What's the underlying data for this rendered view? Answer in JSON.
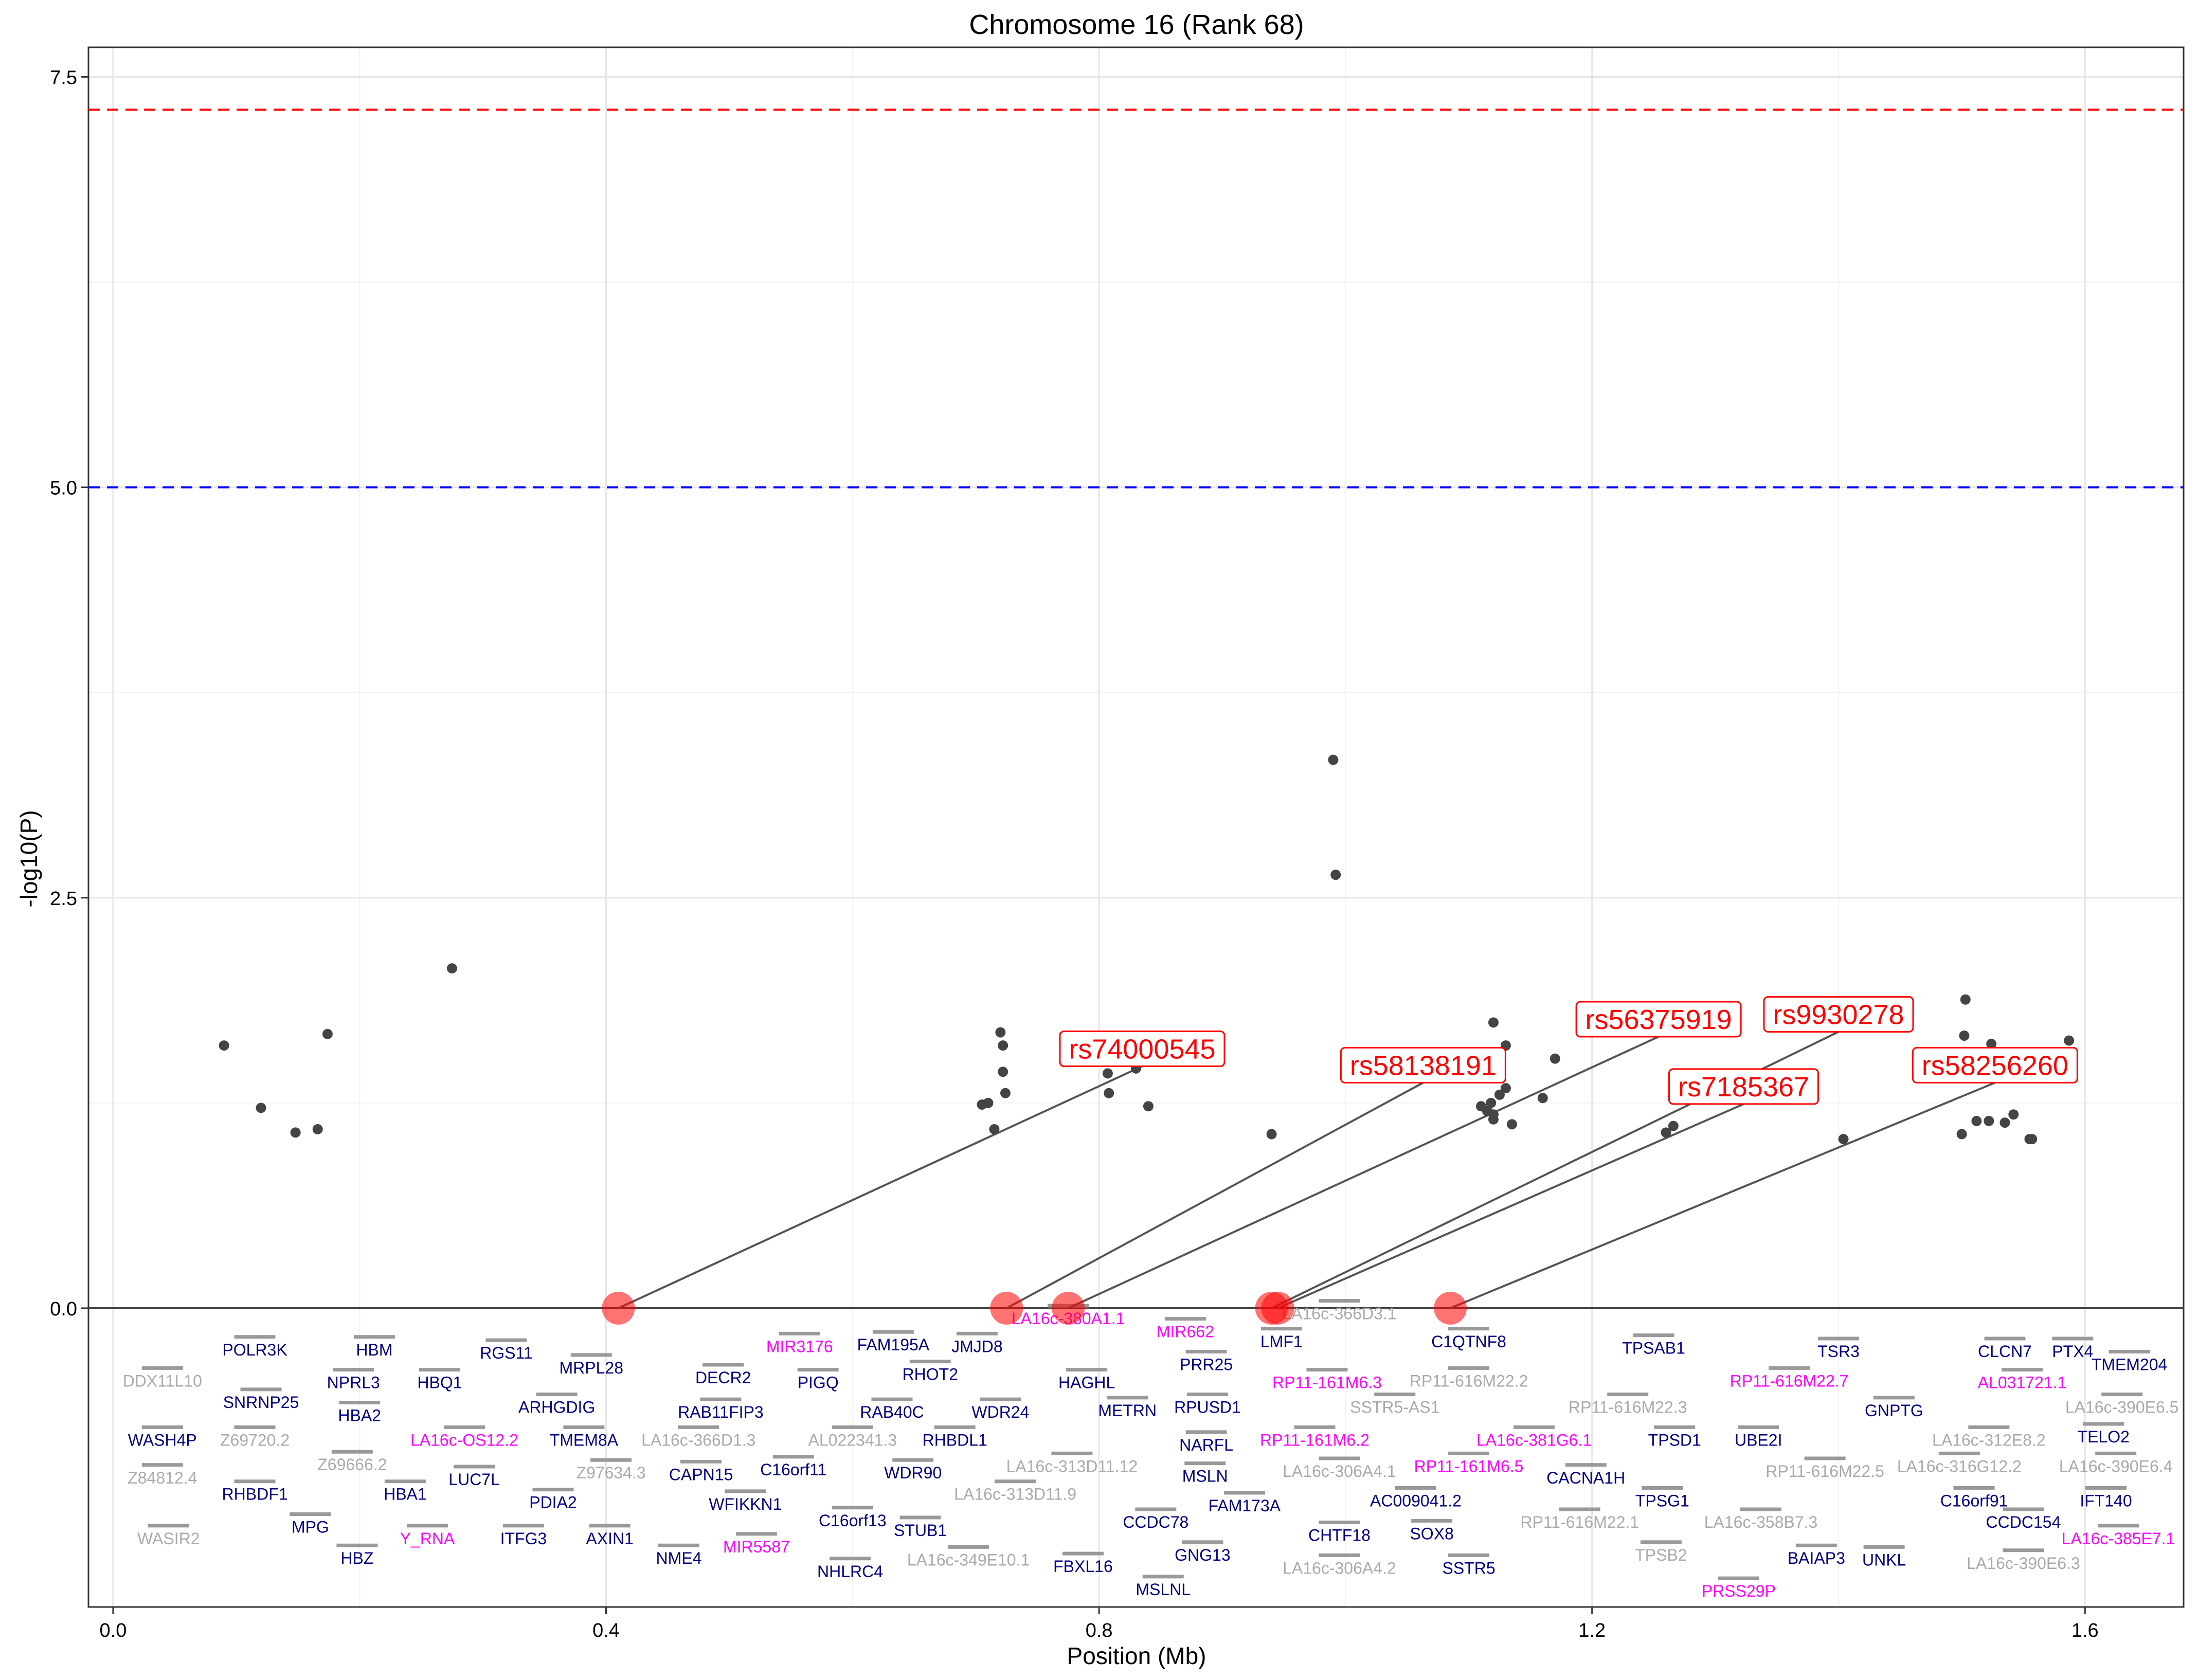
{
  "chart_data": {
    "type": "scatter",
    "title": "Chromosome 16 (Rank 68)",
    "xlabel": "Position (Mb)",
    "ylabel": "-log10(P)",
    "xlim": [
      -0.02,
      1.68
    ],
    "ylim": [
      -1.82,
      7.68
    ],
    "x_ticks": [
      {
        "value": 0.0,
        "label": "0.0"
      },
      {
        "value": 0.4,
        "label": "0.4"
      },
      {
        "value": 0.8,
        "label": "0.8"
      },
      {
        "value": 1.2,
        "label": "1.2"
      },
      {
        "value": 1.6,
        "label": "1.6"
      }
    ],
    "y_ticks": [
      {
        "value": 0.0,
        "label": "0.0"
      },
      {
        "value": 2.5,
        "label": "2.5"
      },
      {
        "value": 5.0,
        "label": "5.0"
      },
      {
        "value": 7.5,
        "label": "7.5"
      }
    ],
    "grid": true,
    "thresholds": [
      {
        "y": 7.3,
        "color": "#ff0000",
        "style": "dashed"
      },
      {
        "y": 5.0,
        "color": "#0000ff",
        "style": "dashed"
      }
    ],
    "baseline": 0,
    "colors": {
      "points": "#444444",
      "highlight": "#ff0000",
      "protein_coding": "#000080",
      "rna_gene": "#ff00ff",
      "other_gene": "#aaaaaa",
      "gene_bar": "#999999"
    },
    "points": [
      {
        "x": 0.09,
        "y": 1.6
      },
      {
        "x": 0.12,
        "y": 1.22
      },
      {
        "x": 0.148,
        "y": 1.07
      },
      {
        "x": 0.166,
        "y": 1.09
      },
      {
        "x": 0.174,
        "y": 1.67
      },
      {
        "x": 0.275,
        "y": 2.07
      },
      {
        "x": 0.705,
        "y": 1.24
      },
      {
        "x": 0.71,
        "y": 1.25
      },
      {
        "x": 0.715,
        "y": 1.09
      },
      {
        "x": 0.72,
        "y": 1.68
      },
      {
        "x": 0.722,
        "y": 1.6
      },
      {
        "x": 0.722,
        "y": 1.44
      },
      {
        "x": 0.724,
        "y": 1.31
      },
      {
        "x": 0.807,
        "y": 1.43
      },
      {
        "x": 0.808,
        "y": 1.31
      },
      {
        "x": 0.83,
        "y": 1.46
      },
      {
        "x": 0.84,
        "y": 1.23
      },
      {
        "x": 0.94,
        "y": 1.06
      },
      {
        "x": 0.99,
        "y": 3.34
      },
      {
        "x": 0.992,
        "y": 2.64
      },
      {
        "x": 1.11,
        "y": 1.23
      },
      {
        "x": 1.115,
        "y": 1.2
      },
      {
        "x": 1.118,
        "y": 1.25
      },
      {
        "x": 1.12,
        "y": 1.15
      },
      {
        "x": 1.12,
        "y": 1.18
      },
      {
        "x": 1.12,
        "y": 1.74
      },
      {
        "x": 1.125,
        "y": 1.3
      },
      {
        "x": 1.13,
        "y": 1.34
      },
      {
        "x": 1.13,
        "y": 1.6
      },
      {
        "x": 1.135,
        "y": 1.12
      },
      {
        "x": 1.16,
        "y": 1.28
      },
      {
        "x": 1.17,
        "y": 1.52
      },
      {
        "x": 1.26,
        "y": 1.07
      },
      {
        "x": 1.266,
        "y": 1.11
      },
      {
        "x": 1.404,
        "y": 1.03
      },
      {
        "x": 1.5,
        "y": 1.06
      },
      {
        "x": 1.502,
        "y": 1.66
      },
      {
        "x": 1.503,
        "y": 1.88
      },
      {
        "x": 1.512,
        "y": 1.14
      },
      {
        "x": 1.522,
        "y": 1.14
      },
      {
        "x": 1.524,
        "y": 1.61
      },
      {
        "x": 1.535,
        "y": 1.13
      },
      {
        "x": 1.542,
        "y": 1.18
      },
      {
        "x": 1.555,
        "y": 1.03
      },
      {
        "x": 1.557,
        "y": 1.03
      },
      {
        "x": 1.577,
        "y": 1.4
      },
      {
        "x": 1.587,
        "y": 1.63
      }
    ],
    "highlighted_snps": [
      {
        "label": "rs74000545",
        "x": 0.41,
        "label_x": 0.835,
        "label_y": 1.58
      },
      {
        "label": "rs58138191",
        "x": 0.725,
        "label_x": 1.063,
        "label_y": 1.48
      },
      {
        "label": "rs56375919",
        "x": 0.775,
        "label_x": 1.254,
        "label_y": 1.76
      },
      {
        "label": "rs9930278",
        "x": 0.94,
        "label_x": 1.4,
        "label_y": 1.79
      },
      {
        "label": "rs7185367",
        "x": 0.945,
        "label_x": 1.323,
        "label_y": 1.35
      },
      {
        "label": "rs58256260",
        "x": 1.085,
        "label_x": 1.527,
        "label_y": 1.48
      }
    ],
    "genes": [
      {
        "name": "DDX11L10",
        "x": 0.04,
        "y": -0.44,
        "color": "#aaaaaa"
      },
      {
        "name": "POLR3K",
        "x": 0.115,
        "y": -0.25,
        "color": "#000080"
      },
      {
        "name": "HBM",
        "x": 0.212,
        "y": -0.25,
        "color": "#000080"
      },
      {
        "name": "NPRL3",
        "x": 0.195,
        "y": -0.45,
        "color": "#000080"
      },
      {
        "name": "HBQ1",
        "x": 0.265,
        "y": -0.45,
        "color": "#000080"
      },
      {
        "name": "RGS11",
        "x": 0.319,
        "y": -0.27,
        "color": "#000080"
      },
      {
        "name": "MRPL28",
        "x": 0.388,
        "y": -0.36,
        "color": "#000080"
      },
      {
        "name": "DECR2",
        "x": 0.495,
        "y": -0.42,
        "color": "#000080"
      },
      {
        "name": "SNRNP25",
        "x": 0.12,
        "y": -0.57,
        "color": "#000080"
      },
      {
        "name": "HBA2",
        "x": 0.2,
        "y": -0.65,
        "color": "#000080"
      },
      {
        "name": "ARHGDIG",
        "x": 0.36,
        "y": -0.6,
        "color": "#000080"
      },
      {
        "name": "WASH4P",
        "x": 0.04,
        "y": -0.8,
        "color": "#000080"
      },
      {
        "name": "Z69720.2",
        "x": 0.115,
        "y": -0.8,
        "color": "#aaaaaa"
      },
      {
        "name": "LA16c-OS12.2",
        "x": 0.285,
        "y": -0.8,
        "color": "#ff00ff"
      },
      {
        "name": "TMEM8A",
        "x": 0.382,
        "y": -0.8,
        "color": "#000080"
      },
      {
        "name": "LA16c-366D1.3",
        "x": 0.475,
        "y": -0.8,
        "color": "#aaaaaa"
      },
      {
        "name": "RAB11FIP3",
        "x": 0.493,
        "y": -0.63,
        "color": "#000080"
      },
      {
        "name": "AL022341.3",
        "x": 0.6,
        "y": -0.8,
        "color": "#aaaaaa"
      },
      {
        "name": "RAB40C",
        "x": 0.632,
        "y": -0.63,
        "color": "#000080"
      },
      {
        "name": "RHBDL1",
        "x": 0.683,
        "y": -0.8,
        "color": "#000080"
      },
      {
        "name": "WDR24",
        "x": 0.72,
        "y": -0.63,
        "color": "#000080"
      },
      {
        "name": "MIR3176",
        "x": 0.557,
        "y": -0.23,
        "color": "#ff00ff"
      },
      {
        "name": "PIGQ",
        "x": 0.572,
        "y": -0.45,
        "color": "#000080"
      },
      {
        "name": "FAM195A",
        "x": 0.633,
        "y": -0.22,
        "color": "#000080"
      },
      {
        "name": "RHOT2",
        "x": 0.663,
        "y": -0.4,
        "color": "#000080"
      },
      {
        "name": "JMJD8",
        "x": 0.701,
        "y": -0.23,
        "color": "#000080"
      },
      {
        "name": "LA16c-380A1.1",
        "x": 0.775,
        "y": -0.06,
        "color": "#ff00ff"
      },
      {
        "name": "MIR662",
        "x": 0.87,
        "y": -0.14,
        "color": "#ff00ff"
      },
      {
        "name": "HAGHL",
        "x": 0.79,
        "y": -0.45,
        "color": "#000080"
      },
      {
        "name": "PRR25",
        "x": 0.887,
        "y": -0.34,
        "color": "#000080"
      },
      {
        "name": "METRN",
        "x": 0.823,
        "y": -0.62,
        "color": "#000080"
      },
      {
        "name": "RPUSD1",
        "x": 0.888,
        "y": -0.6,
        "color": "#000080"
      },
      {
        "name": "NARFL",
        "x": 0.887,
        "y": -0.83,
        "color": "#000080"
      },
      {
        "name": "LMF1",
        "x": 0.948,
        "y": -0.2,
        "color": "#000080"
      },
      {
        "name": "LA16c-366D3.1",
        "x": 0.995,
        "y": -0.03,
        "color": "#aaaaaa"
      },
      {
        "name": "RP11-161M6.3",
        "x": 0.985,
        "y": -0.45,
        "color": "#ff00ff"
      },
      {
        "name": "RP11-161M6.2",
        "x": 0.975,
        "y": -0.8,
        "color": "#ff00ff"
      },
      {
        "name": "C1QTNF8",
        "x": 1.1,
        "y": -0.2,
        "color": "#000080"
      },
      {
        "name": "RP11-616M22.2",
        "x": 1.1,
        "y": -0.44,
        "color": "#aaaaaa"
      },
      {
        "name": "SSTR5-AS1",
        "x": 1.04,
        "y": -0.6,
        "color": "#aaaaaa"
      },
      {
        "name": "TPSAB1",
        "x": 1.25,
        "y": -0.24,
        "color": "#000080"
      },
      {
        "name": "RP11-616M22.7",
        "x": 1.36,
        "y": -0.44,
        "color": "#ff00ff"
      },
      {
        "name": "TSR3",
        "x": 1.4,
        "y": -0.26,
        "color": "#000080"
      },
      {
        "name": "CLCN7",
        "x": 1.535,
        "y": -0.26,
        "color": "#000080"
      },
      {
        "name": "PTX4",
        "x": 1.59,
        "y": -0.26,
        "color": "#000080"
      },
      {
        "name": "TMEM204",
        "x": 1.636,
        "y": -0.34,
        "color": "#000080"
      },
      {
        "name": "AL031721.1",
        "x": 1.549,
        "y": -0.45,
        "color": "#ff00ff"
      },
      {
        "name": "RP11-616M22.3",
        "x": 1.229,
        "y": -0.6,
        "color": "#aaaaaa"
      },
      {
        "name": "LA16c-381G6.1",
        "x": 1.153,
        "y": -0.8,
        "color": "#ff00ff"
      },
      {
        "name": "TPSD1",
        "x": 1.267,
        "y": -0.8,
        "color": "#000080"
      },
      {
        "name": "UBE2I",
        "x": 1.335,
        "y": -0.8,
        "color": "#000080"
      },
      {
        "name": "GNPTG",
        "x": 1.445,
        "y": -0.62,
        "color": "#000080"
      },
      {
        "name": "LA16c-390E6.5",
        "x": 1.63,
        "y": -0.6,
        "color": "#aaaaaa"
      },
      {
        "name": "LA16c-312E8.2",
        "x": 1.522,
        "y": -0.8,
        "color": "#aaaaaa"
      },
      {
        "name": "TELO2",
        "x": 1.615,
        "y": -0.78,
        "color": "#000080"
      },
      {
        "name": "Z84812.4",
        "x": 0.04,
        "y": -1.03,
        "color": "#aaaaaa"
      },
      {
        "name": "RHBDF1",
        "x": 0.115,
        "y": -1.13,
        "color": "#000080"
      },
      {
        "name": "Z69666.2",
        "x": 0.194,
        "y": -0.95,
        "color": "#aaaaaa"
      },
      {
        "name": "HBA1",
        "x": 0.237,
        "y": -1.13,
        "color": "#000080"
      },
      {
        "name": "LUC7L",
        "x": 0.293,
        "y": -1.04,
        "color": "#000080"
      },
      {
        "name": "PDIA2",
        "x": 0.357,
        "y": -1.18,
        "color": "#000080"
      },
      {
        "name": "Z97634.3",
        "x": 0.404,
        "y": -1.0,
        "color": "#aaaaaa"
      },
      {
        "name": "CAPN15",
        "x": 0.477,
        "y": -1.01,
        "color": "#000080"
      },
      {
        "name": "C16orf11",
        "x": 0.552,
        "y": -0.98,
        "color": "#000080"
      },
      {
        "name": "WFIKKN1",
        "x": 0.513,
        "y": -1.19,
        "color": "#000080"
      },
      {
        "name": "WDR90",
        "x": 0.649,
        "y": -1.0,
        "color": "#000080"
      },
      {
        "name": "LA16c-313D11.12",
        "x": 0.778,
        "y": -0.96,
        "color": "#aaaaaa"
      },
      {
        "name": "LA16c-313D11.9",
        "x": 0.732,
        "y": -1.13,
        "color": "#aaaaaa"
      },
      {
        "name": "MSLN",
        "x": 0.886,
        "y": -1.02,
        "color": "#000080"
      },
      {
        "name": "FAM173A",
        "x": 0.918,
        "y": -1.2,
        "color": "#000080"
      },
      {
        "name": "LA16c-306A4.1",
        "x": 0.995,
        "y": -0.99,
        "color": "#aaaaaa"
      },
      {
        "name": "AC009041.2",
        "x": 1.057,
        "y": -1.17,
        "color": "#000080"
      },
      {
        "name": "RP11-161M6.5",
        "x": 1.1,
        "y": -0.96,
        "color": "#ff00ff"
      },
      {
        "name": "CACNA1H",
        "x": 1.195,
        "y": -1.03,
        "color": "#000080"
      },
      {
        "name": "TPSG1",
        "x": 1.257,
        "y": -1.17,
        "color": "#000080"
      },
      {
        "name": "RP11-616M22.5",
        "x": 1.389,
        "y": -0.99,
        "color": "#aaaaaa"
      },
      {
        "name": "LA16c-316G12.2",
        "x": 1.498,
        "y": -0.96,
        "color": "#aaaaaa"
      },
      {
        "name": "C16orf91",
        "x": 1.51,
        "y": -1.17,
        "color": "#000080"
      },
      {
        "name": "LA16c-390E6.4",
        "x": 1.625,
        "y": -0.96,
        "color": "#aaaaaa"
      },
      {
        "name": "IFT140",
        "x": 1.617,
        "y": -1.17,
        "color": "#000080"
      },
      {
        "name": "WASIR2",
        "x": 0.045,
        "y": -1.4,
        "color": "#aaaaaa"
      },
      {
        "name": "MPG",
        "x": 0.16,
        "y": -1.33,
        "color": "#000080"
      },
      {
        "name": "HBZ",
        "x": 0.198,
        "y": -1.52,
        "color": "#000080"
      },
      {
        "name": "Y_RNA",
        "x": 0.255,
        "y": -1.4,
        "color": "#ff00ff"
      },
      {
        "name": "ITFG3",
        "x": 0.333,
        "y": -1.4,
        "color": "#000080"
      },
      {
        "name": "AXIN1",
        "x": 0.403,
        "y": -1.4,
        "color": "#000080"
      },
      {
        "name": "NME4",
        "x": 0.459,
        "y": -1.52,
        "color": "#000080"
      },
      {
        "name": "MIR5587",
        "x": 0.522,
        "y": -1.45,
        "color": "#ff00ff"
      },
      {
        "name": "C16orf13",
        "x": 0.6,
        "y": -1.29,
        "color": "#000080"
      },
      {
        "name": "NHLRC4",
        "x": 0.598,
        "y": -1.6,
        "color": "#000080"
      },
      {
        "name": "STUB1",
        "x": 0.655,
        "y": -1.35,
        "color": "#000080"
      },
      {
        "name": "LA16c-349E10.1",
        "x": 0.694,
        "y": -1.53,
        "color": "#aaaaaa"
      },
      {
        "name": "FBXL16",
        "x": 0.787,
        "y": -1.57,
        "color": "#000080"
      },
      {
        "name": "CCDC78",
        "x": 0.846,
        "y": -1.3,
        "color": "#000080"
      },
      {
        "name": "GNG13",
        "x": 0.884,
        "y": -1.5,
        "color": "#000080"
      },
      {
        "name": "MSLNL",
        "x": 0.852,
        "y": -1.71,
        "color": "#000080"
      },
      {
        "name": "CHTF18",
        "x": 0.995,
        "y": -1.38,
        "color": "#000080"
      },
      {
        "name": "LA16c-306A4.2",
        "x": 0.995,
        "y": -1.58,
        "color": "#aaaaaa"
      },
      {
        "name": "SOX8",
        "x": 1.07,
        "y": -1.37,
        "color": "#000080"
      },
      {
        "name": "SSTR5",
        "x": 1.1,
        "y": -1.58,
        "color": "#000080"
      },
      {
        "name": "RP11-616M22.1",
        "x": 1.19,
        "y": -1.3,
        "color": "#aaaaaa"
      },
      {
        "name": "TPSB2",
        "x": 1.256,
        "y": -1.5,
        "color": "#aaaaaa"
      },
      {
        "name": "LA16c-358B7.3",
        "x": 1.337,
        "y": -1.3,
        "color": "#aaaaaa"
      },
      {
        "name": "PRSS29P",
        "x": 1.319,
        "y": -1.72,
        "color": "#ff00ff"
      },
      {
        "name": "BAIAP3",
        "x": 1.382,
        "y": -1.52,
        "color": "#000080"
      },
      {
        "name": "UNKL",
        "x": 1.437,
        "y": -1.53,
        "color": "#000080"
      },
      {
        "name": "CCDC154",
        "x": 1.55,
        "y": -1.3,
        "color": "#000080"
      },
      {
        "name": "LA16c-390E6.3",
        "x": 1.55,
        "y": -1.55,
        "color": "#aaaaaa"
      },
      {
        "name": "LA16c-385E7.1",
        "x": 1.627,
        "y": -1.4,
        "color": "#ff00ff"
      }
    ]
  }
}
